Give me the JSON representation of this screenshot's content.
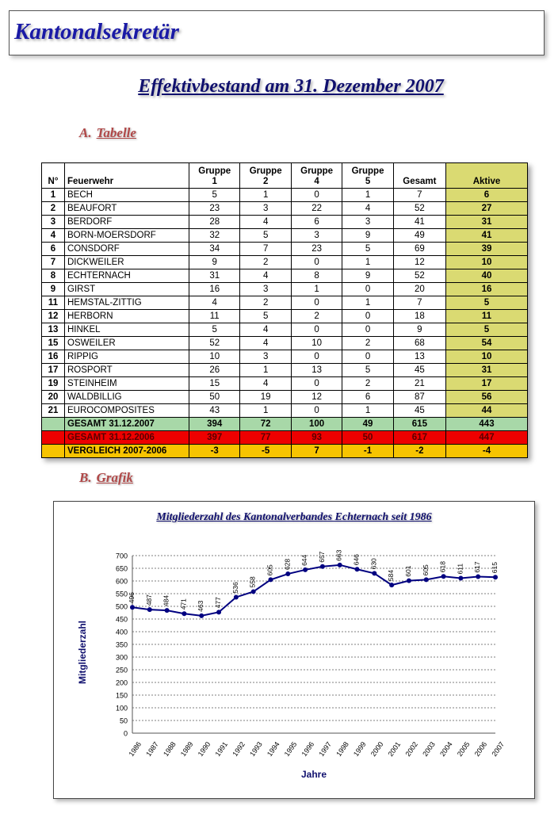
{
  "header": {
    "title": "Kantonalsekretär"
  },
  "main_title": "Effektivbestand am 31. Dezember 2007",
  "section_a": {
    "letter": "A.",
    "label": "Tabelle"
  },
  "section_b": {
    "letter": "B.",
    "label": "Grafik"
  },
  "table": {
    "headers": {
      "nr": "N°",
      "name": "Feuerwehr",
      "g1a": "Gruppe",
      "g1b": "1",
      "g2a": "Gruppe",
      "g2b": "2",
      "g4a": "Gruppe",
      "g4b": "4",
      "g5a": "Gruppe",
      "g5b": "5",
      "gesamt": "Gesamt",
      "aktive": "Aktive"
    },
    "rows": [
      [
        "1",
        "BECH",
        "5",
        "1",
        "0",
        "1",
        "7",
        "6"
      ],
      [
        "2",
        "BEAUFORT",
        "23",
        "3",
        "22",
        "4",
        "52",
        "27"
      ],
      [
        "3",
        "BERDORF",
        "28",
        "4",
        "6",
        "3",
        "41",
        "31"
      ],
      [
        "4",
        "BORN-MOERSDORF",
        "32",
        "5",
        "3",
        "9",
        "49",
        "41"
      ],
      [
        "6",
        "CONSDORF",
        "34",
        "7",
        "23",
        "5",
        "69",
        "39"
      ],
      [
        "7",
        "DICKWEILER",
        "9",
        "2",
        "0",
        "1",
        "12",
        "10"
      ],
      [
        "8",
        "ECHTERNACH",
        "31",
        "4",
        "8",
        "9",
        "52",
        "40"
      ],
      [
        "9",
        "GIRST",
        "16",
        "3",
        "1",
        "0",
        "20",
        "16"
      ],
      [
        "11",
        "HEMSTAL-ZITTIG",
        "4",
        "2",
        "0",
        "1",
        "7",
        "5"
      ],
      [
        "12",
        "HERBORN",
        "11",
        "5",
        "2",
        "0",
        "18",
        "11"
      ],
      [
        "13",
        "HINKEL",
        "5",
        "4",
        "0",
        "0",
        "9",
        "5"
      ],
      [
        "15",
        "OSWEILER",
        "52",
        "4",
        "10",
        "2",
        "68",
        "54"
      ],
      [
        "16",
        "RIPPIG",
        "10",
        "3",
        "0",
        "0",
        "13",
        "10"
      ],
      [
        "17",
        "ROSPORT",
        "26",
        "1",
        "13",
        "5",
        "45",
        "31"
      ],
      [
        "19",
        "STEINHEIM",
        "15",
        "4",
        "0",
        "2",
        "21",
        "17"
      ],
      [
        "20",
        "WALDBILLIG",
        "50",
        "19",
        "12",
        "6",
        "87",
        "56"
      ],
      [
        "21",
        "EUROCOMPOSITES",
        "43",
        "1",
        "0",
        "1",
        "45",
        "44"
      ]
    ],
    "total_2007": [
      "GESAMT 31.12.2007",
      "394",
      "72",
      "100",
      "49",
      "615",
      "443"
    ],
    "total_2006": [
      "GESAMT 31.12.2006",
      "397",
      "77",
      "93",
      "50",
      "617",
      "447"
    ],
    "vergleich": [
      "VERGLEICH 2007-2006",
      "-3",
      "-5",
      "7",
      "-1",
      "-2",
      "-4"
    ]
  },
  "chart_data": {
    "type": "line",
    "title": "Mitgliederzahl des Kantonalverbandes Echternach seit 1986",
    "xlabel": "Jahre",
    "ylabel": "Mitgliederzahl",
    "ylim": [
      0,
      700
    ],
    "yticks": [
      0,
      50,
      100,
      150,
      200,
      250,
      300,
      350,
      400,
      450,
      500,
      550,
      600,
      650,
      700
    ],
    "categories": [
      "1986",
      "1987",
      "1988",
      "1989",
      "1990",
      "1991",
      "1992",
      "1993",
      "1994",
      "1995",
      "1996",
      "1997",
      "1998",
      "1999",
      "2000",
      "2001",
      "2002",
      "2003",
      "2004",
      "2005",
      "2006",
      "2007"
    ],
    "values": [
      496,
      487,
      484,
      471,
      463,
      477,
      536,
      558,
      605,
      628,
      644,
      657,
      663,
      646,
      630,
      584,
      601,
      605,
      618,
      611,
      617,
      615
    ],
    "data_labels": [
      "496",
      "487",
      "484",
      "471",
      "463",
      "477",
      "536",
      "558",
      "605",
      "628",
      "644",
      "657",
      "663",
      "646",
      "630",
      "584",
      "601",
      "605",
      "618",
      "611",
      "617",
      "615"
    ],
    "grid": true,
    "line_color": "#000080"
  }
}
